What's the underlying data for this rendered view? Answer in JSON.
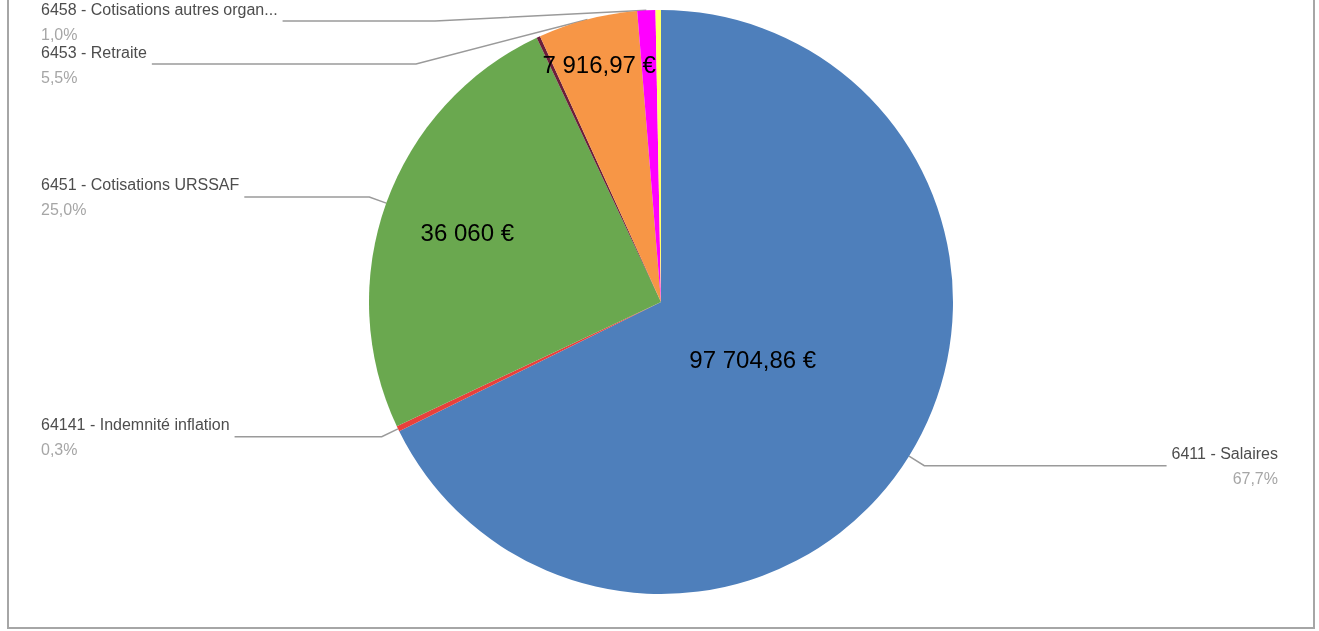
{
  "chart_data": {
    "type": "pie",
    "categories": [
      "6411 - Salaires",
      "64141 - Indemnité inflation",
      "6451 - Cotisations URSSAF",
      null,
      "6453 - Retraite",
      "6458 - Cotisations autres organ...",
      null
    ],
    "values": [
      67.7,
      0.3,
      25.0,
      0.2,
      5.5,
      1.0,
      0.3
    ],
    "colors": [
      "#4e7fbb",
      "#e8413c",
      "#6aa84f",
      "#6b1f3a",
      "#f79646",
      "#ff00ff",
      "#ffff66"
    ],
    "value_labels": [
      "67,7%",
      "0,3%",
      "25,0%",
      null,
      "5,5%",
      "1,0%",
      null
    ],
    "annotations": [
      {
        "text": "97 704,86 €",
        "x": "6411 - Salaires"
      },
      {
        "text": "36 060 €",
        "x": "6451 - Cotisations URSSAF"
      },
      {
        "text": "7 916,97 €",
        "x": "6453 - Retraite"
      }
    ]
  }
}
